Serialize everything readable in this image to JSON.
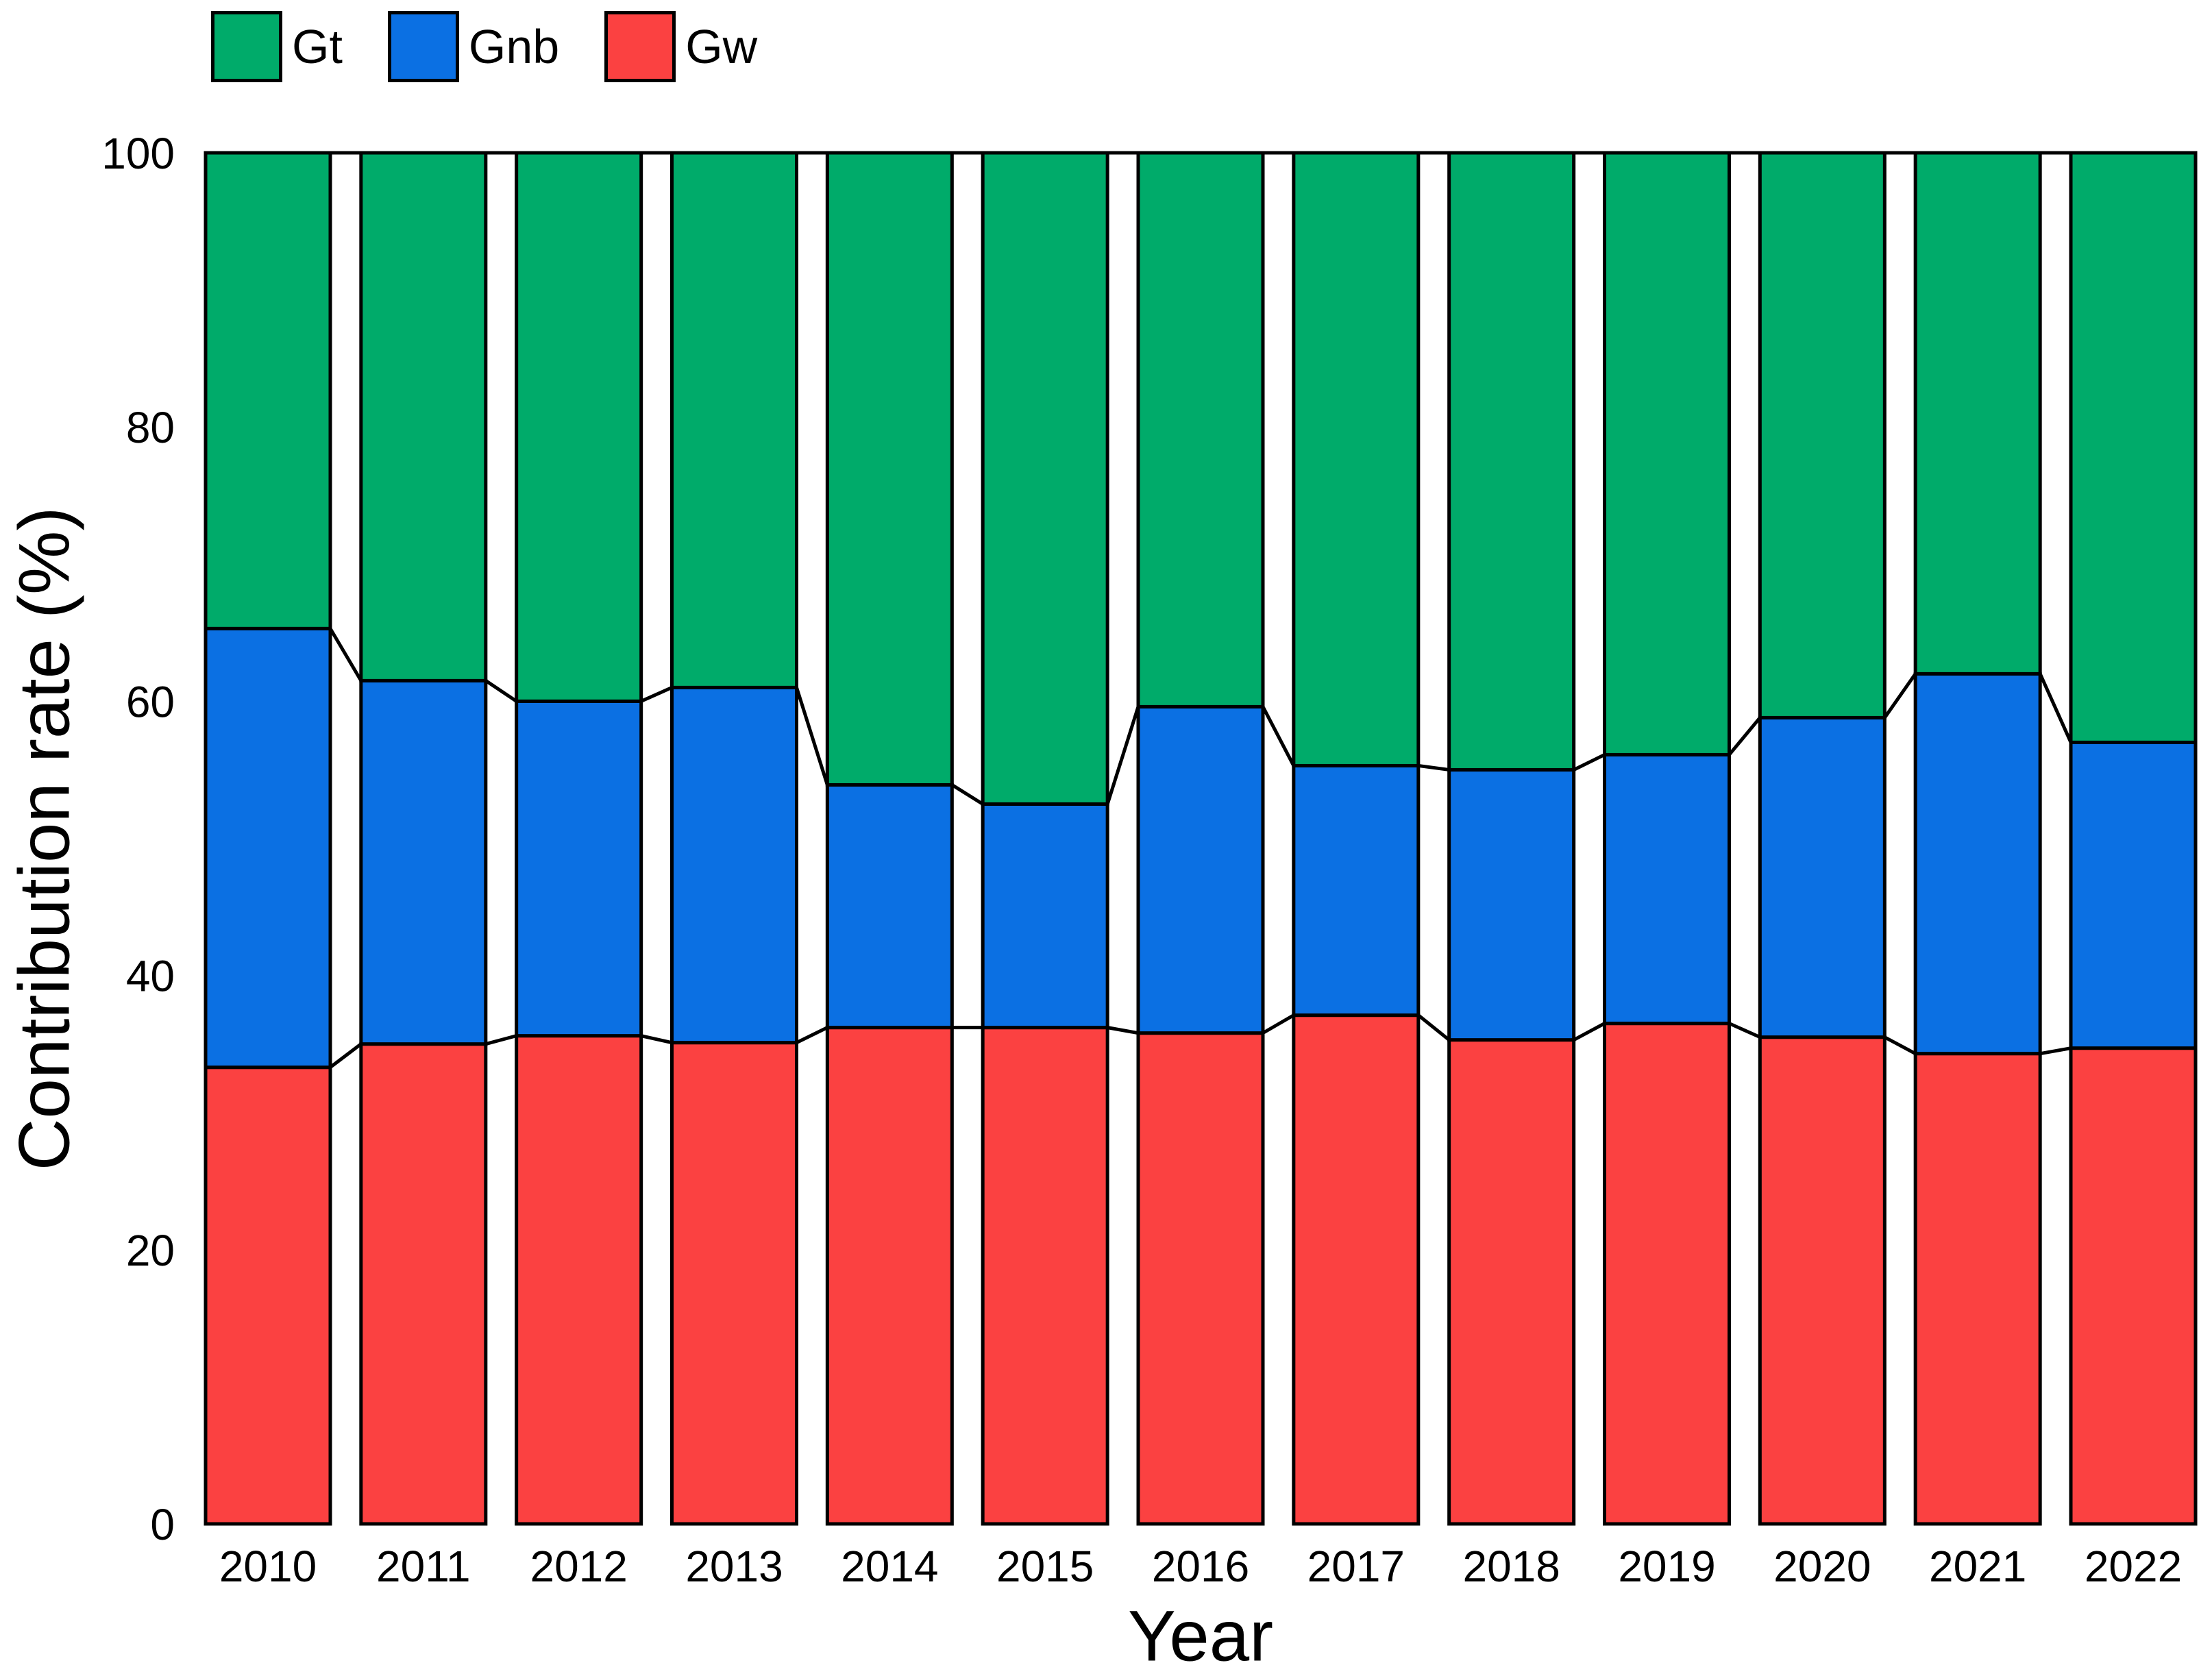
{
  "page": {
    "background": "#ffffff",
    "text_color": "#000000"
  },
  "chart_data": {
    "type": "bar",
    "stacked": true,
    "title": "",
    "xlabel": "Year",
    "ylabel": "Contribution rate (%)",
    "ylim": [
      0,
      100
    ],
    "yticks": [
      0,
      20,
      40,
      60,
      80,
      100
    ],
    "grid": false,
    "legend_position": "top-left",
    "outline_color": "#000000",
    "connectors": true,
    "categories": [
      "2010",
      "2011",
      "2012",
      "2013",
      "2014",
      "2015",
      "2016",
      "2017",
      "2018",
      "2019",
      "2020",
      "2021",
      "2022"
    ],
    "legend": [
      {
        "label": "Gt",
        "color": "#00AB6A"
      },
      {
        "label": "Gnb",
        "color": "#0B70E3"
      },
      {
        "label": "Gw",
        "color": "#FB4141"
      }
    ],
    "series": [
      {
        "name": "Gw",
        "color": "#FB4141",
        "values": [
          33.3,
          35.0,
          35.6,
          35.1,
          36.2,
          36.2,
          35.8,
          37.1,
          35.3,
          36.5,
          35.5,
          34.3,
          34.7
        ]
      },
      {
        "name": "Gnb",
        "color": "#0B70E3",
        "values": [
          32.0,
          26.5,
          24.4,
          25.9,
          17.7,
          16.3,
          23.8,
          18.2,
          19.7,
          19.6,
          23.3,
          27.7,
          22.3
        ]
      },
      {
        "name": "Gt",
        "color": "#00AB6A",
        "values": [
          34.7,
          38.5,
          40.0,
          39.0,
          46.1,
          47.5,
          40.4,
          44.7,
          45.0,
          43.9,
          41.2,
          38.0,
          43.0
        ]
      }
    ]
  }
}
